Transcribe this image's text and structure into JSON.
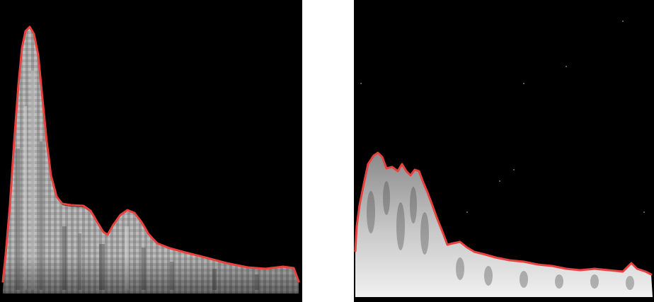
{
  "figure": {
    "panels": [
      {
        "id": "left",
        "description_name": "doppler-spectrogram-left"
      },
      {
        "id": "right",
        "description_name": "doppler-spectrogram-right"
      }
    ],
    "colors": {
      "background": "#000000",
      "envelope": "#e8423f",
      "spectrum_light": "#d8d8d8",
      "spectrum_mid": "#9a9a9a",
      "spectrum_dark": "#4a4a4a",
      "page": "#ffffff"
    }
  }
}
